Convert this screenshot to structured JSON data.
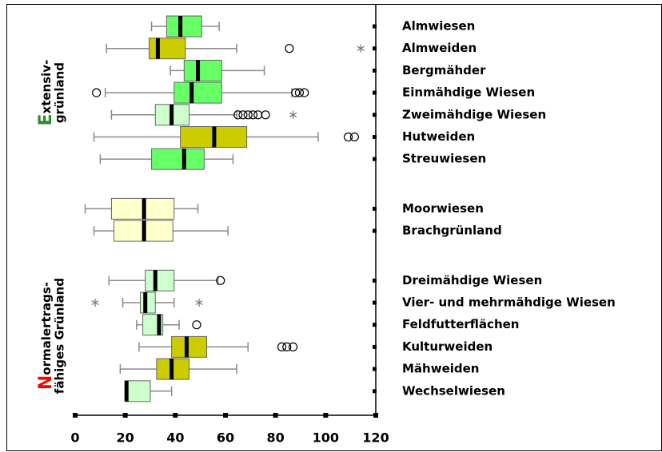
{
  "chart_data": {
    "type": "boxplot",
    "orientation": "horizontal",
    "xlim": [
      0,
      120
    ],
    "xticks": [
      0,
      20,
      40,
      60,
      80,
      100,
      120
    ],
    "whisker_color": "#8a8a8a",
    "groups": [
      {
        "initial": "E",
        "initial_color": "#2e8b2e",
        "label_lines": [
          "xtensiv-",
          "grünland"
        ],
        "boxes": [
          {
            "name": "Almwiesen",
            "color": "#66ff66",
            "whisker_low": 30.5,
            "q1": 36.5,
            "median": 42,
            "q3": 50.5,
            "whisker_high": 57.5,
            "outliers": [],
            "extremes": []
          },
          {
            "name": "Almweiden",
            "color": "#cccc00",
            "whisker_low": 12.5,
            "q1": 29.5,
            "median": 33,
            "q3": 44,
            "whisker_high": 64.5,
            "outliers": [
              85.5
            ],
            "extremes": [
              114
            ]
          },
          {
            "name": "Bergmähder",
            "color": "#66ff66",
            "whisker_low": 38,
            "q1": 43.5,
            "median": 49,
            "q3": 58.5,
            "whisker_high": 75.5,
            "outliers": [],
            "extremes": []
          },
          {
            "name": "Einmähdige Wiesen",
            "color": "#66ff66",
            "whisker_low": 12,
            "q1": 39.5,
            "median": 46.5,
            "q3": 58.5,
            "whisker_high": 86.5,
            "outliers": [
              8.5,
              88,
              89.5,
              91.5
            ],
            "extremes": []
          },
          {
            "name": "Zweimähdige Wiesen",
            "color": "#ccffcc",
            "whisker_low": 14.5,
            "q1": 32,
            "median": 38.5,
            "q3": 45.5,
            "whisker_high": 64.5,
            "outliers": [
              65,
              67,
              69,
              71,
              73,
              76
            ],
            "extremes": [
              87
            ]
          },
          {
            "name": "Hutweiden",
            "color": "#cccc00",
            "whisker_low": 7.5,
            "q1": 42,
            "median": 55.5,
            "q3": 68.5,
            "whisker_high": 97,
            "outliers": [
              109,
              111.5
            ],
            "extremes": []
          },
          {
            "name": "Streuwiesen",
            "color": "#66ff66",
            "whisker_low": 10,
            "q1": 30.5,
            "median": 43.5,
            "q3": 51.5,
            "whisker_high": 63,
            "outliers": [],
            "extremes": []
          }
        ]
      },
      {
        "boxes": [
          {
            "name": "Moorwiesen",
            "color": "#ffffcc",
            "whisker_low": 4,
            "q1": 14.5,
            "median": 27.5,
            "q3": 39.5,
            "whisker_high": 49,
            "outliers": [],
            "extremes": []
          },
          {
            "name": "Brachgrünland",
            "color": "#ffffcc",
            "whisker_low": 7.5,
            "q1": 15.5,
            "median": 27.5,
            "q3": 39,
            "whisker_high": 61,
            "outliers": [],
            "extremes": []
          }
        ]
      },
      {
        "initial": "N",
        "initial_color": "#ff0000",
        "label_lines": [
          "ormalertrags-",
          "fähiges Grünland"
        ],
        "boxes": [
          {
            "name": "Dreimähdige Wiesen",
            "color": "#ccffcc",
            "whisker_low": 13.5,
            "q1": 28,
            "median": 32,
            "q3": 39.5,
            "whisker_high": 57,
            "outliers": [
              58
            ],
            "extremes": []
          },
          {
            "name": "Vier- und mehrmähdige Wiesen",
            "color": "#ccffcc",
            "whisker_low": 19,
            "q1": 26,
            "median": 28,
            "q3": 32,
            "whisker_high": 39.5,
            "outliers": [],
            "extremes": [
              8,
              49.5
            ]
          },
          {
            "name": "Feldfutterflächen",
            "color": "#ccffcc",
            "whisker_low": 24.5,
            "q1": 27,
            "median": 33.5,
            "q3": 35,
            "whisker_high": 41.5,
            "outliers": [
              48.5
            ],
            "extremes": []
          },
          {
            "name": "Kulturweiden",
            "color": "#cccc00",
            "whisker_low": 25.5,
            "q1": 38.5,
            "median": 44.5,
            "q3": 52.5,
            "whisker_high": 69,
            "outliers": [
              82.5,
              84.5,
              87
            ],
            "extremes": []
          },
          {
            "name": "Mähweiden",
            "color": "#cccc00",
            "whisker_low": 18,
            "q1": 32.5,
            "median": 38.5,
            "q3": 45.5,
            "whisker_high": 64.5,
            "outliers": [],
            "extremes": []
          },
          {
            "name": "Wechselwiesen",
            "color": "#ccffcc",
            "whisker_low": 20,
            "q1": 20,
            "median": 20.5,
            "q3": 30,
            "whisker_high": 38.5,
            "outliers": [],
            "extremes": []
          }
        ]
      }
    ]
  }
}
